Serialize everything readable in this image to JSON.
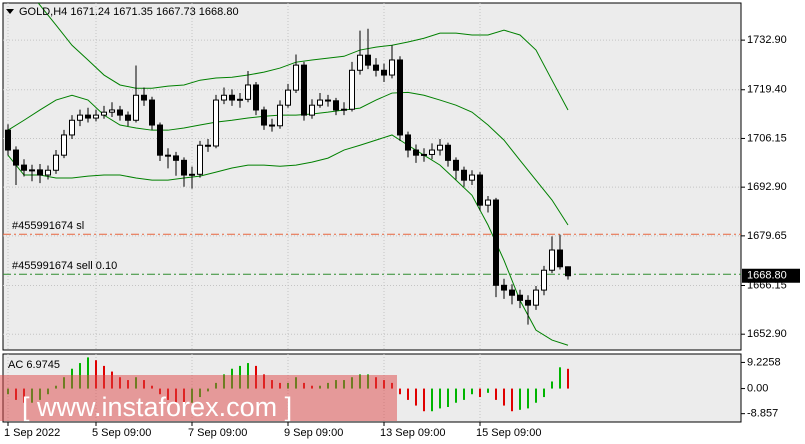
{
  "chart_data": {
    "type": "candlestick",
    "title": "GOLD,H4  1671.24 1671.35 1667.73 1668.80",
    "categories": [
      "1 Sep 2022",
      null,
      null,
      null,
      null,
      null,
      null,
      null,
      null,
      null,
      null,
      "5 Sep 09:00",
      null,
      null,
      null,
      null,
      null,
      null,
      null,
      null,
      null,
      null,
      null,
      "7 Sep 09:00",
      null,
      null,
      null,
      null,
      null,
      null,
      null,
      null,
      null,
      null,
      null,
      "9 Sep 09:00",
      null,
      null,
      null,
      null,
      null,
      null,
      null,
      null,
      null,
      null,
      null,
      "13 Sep 09:00",
      null,
      null,
      null,
      null,
      null,
      null,
      null,
      null,
      null,
      null,
      null,
      "15 Sep 09:00",
      null,
      null,
      null,
      null,
      null,
      null,
      null,
      null,
      null,
      null,
      null
    ],
    "open": [
      1708.4,
      1703.0,
      1698.9,
      1697.5,
      1697.6,
      1696.2,
      1697.5,
      1701.6,
      1707.1,
      1711.1,
      1712.5,
      1711.7,
      1712.5,
      1713.3,
      1713.9,
      1712.5,
      1711.1,
      1717.9,
      1716.6,
      1709.8,
      1701.6,
      1701.4,
      1700.2,
      1696.2,
      1696.4,
      1704.3,
      1704.1,
      1716.6,
      1717.9,
      1716.6,
      1716.8,
      1720.7,
      1713.9,
      1709.8,
      1709.6,
      1715.2,
      1719.3,
      1726.1,
      1712.5,
      1715.2,
      1716.6,
      1716.4,
      1713.9,
      1714.1,
      1724.7,
      1728.8,
      1726.1,
      1724.7,
      1723.4,
      1727.5,
      1707.1,
      1703.0,
      1701.6,
      1701.8,
      1703.0,
      1704.3,
      1700.2,
      1697.5,
      1694.8,
      1696.2,
      1688.0,
      1689.4,
      1666.2,
      1664.9,
      1663.5,
      1662.1,
      1660.8,
      1664.9,
      1670.3,
      1675.8,
      1671.24
    ],
    "high": [
      1710.0,
      1704.0,
      1700.5,
      1699.0,
      1699.2,
      1698.8,
      1703.0,
      1708.5,
      1712.5,
      1714.0,
      1714.5,
      1714.0,
      1715.0,
      1716.0,
      1715.0,
      1713.5,
      1726.0,
      1720.0,
      1717.5,
      1710.5,
      1703.5,
      1702.5,
      1701.0,
      1698.5,
      1705.5,
      1706.0,
      1718.0,
      1720.0,
      1719.5,
      1718.5,
      1724.5,
      1721.5,
      1714.8,
      1711.5,
      1716.5,
      1721.0,
      1729.0,
      1727.0,
      1716.8,
      1718.5,
      1718.0,
      1717.2,
      1716.0,
      1727.0,
      1735.5,
      1736.0,
      1728.0,
      1726.5,
      1731.5,
      1728.5,
      1708.0,
      1704.5,
      1703.5,
      1704.8,
      1706.0,
      1705.0,
      1701.0,
      1698.5,
      1697.5,
      1697.0,
      1690.5,
      1690.0,
      1668.0,
      1666.5,
      1665.0,
      1663.5,
      1666.0,
      1671.5,
      1679.5,
      1680.0,
      1671.35
    ],
    "low": [
      1701.5,
      1693.5,
      1695.8,
      1694.5,
      1694.0,
      1695.0,
      1696.5,
      1700.8,
      1706.0,
      1709.5,
      1710.5,
      1710.8,
      1711.5,
      1712.0,
      1711.0,
      1709.5,
      1710.5,
      1715.0,
      1708.5,
      1700.0,
      1698.0,
      1696.0,
      1693.0,
      1692.5,
      1695.5,
      1702.5,
      1703.5,
      1715.5,
      1715.0,
      1714.5,
      1716.0,
      1712.5,
      1708.5,
      1708.0,
      1708.8,
      1714.5,
      1718.5,
      1711.0,
      1711.5,
      1714.5,
      1714.8,
      1712.5,
      1712.5,
      1713.5,
      1723.5,
      1725.0,
      1723.0,
      1721.5,
      1722.5,
      1705.5,
      1701.0,
      1699.5,
      1699.8,
      1700.5,
      1701.5,
      1698.5,
      1695.0,
      1693.0,
      1693.5,
      1686.5,
      1686.0,
      1663.0,
      1662.5,
      1661.0,
      1660.0,
      1655.5,
      1659.5,
      1663.5,
      1669.5,
      1670.5,
      1667.73
    ],
    "close": [
      1703.0,
      1698.9,
      1697.5,
      1697.6,
      1696.2,
      1697.5,
      1701.6,
      1707.1,
      1711.1,
      1712.5,
      1711.7,
      1712.5,
      1713.3,
      1713.9,
      1712.5,
      1711.1,
      1717.9,
      1716.6,
      1709.8,
      1701.6,
      1701.4,
      1700.2,
      1696.2,
      1696.4,
      1704.3,
      1704.1,
      1716.6,
      1717.9,
      1716.6,
      1716.8,
      1720.7,
      1713.9,
      1709.8,
      1709.6,
      1715.2,
      1719.3,
      1726.1,
      1712.5,
      1715.2,
      1716.6,
      1716.4,
      1713.9,
      1714.1,
      1724.7,
      1728.8,
      1726.1,
      1724.7,
      1723.4,
      1727.5,
      1707.1,
      1703.0,
      1701.6,
      1701.8,
      1703.0,
      1704.3,
      1700.2,
      1697.5,
      1694.8,
      1696.2,
      1688.0,
      1689.4,
      1666.2,
      1664.9,
      1663.5,
      1662.1,
      1660.8,
      1664.9,
      1670.3,
      1675.8,
      1671.24,
      1668.8
    ],
    "bull_color": "#ffffff",
    "bear_color": "#000000",
    "ylim": [
      1648.6,
      1743.0
    ],
    "yticks": [
      {
        "value": 1732.9,
        "label": "1732.90"
      },
      {
        "value": 1719.4,
        "label": "1719.40"
      },
      {
        "value": 1706.15,
        "label": "1706.15"
      },
      {
        "value": 1692.9,
        "label": "1692.90"
      },
      {
        "value": 1679.65,
        "label": "1679.65"
      },
      {
        "value": 1666.15,
        "label": "1666.15"
      },
      {
        "value": 1652.9,
        "label": "1652.90"
      }
    ],
    "grid": true,
    "bands": {
      "color": "#008000",
      "x": [
        0,
        2,
        4,
        6,
        8,
        10,
        12,
        14,
        16,
        18,
        20,
        22,
        24,
        26,
        28,
        30,
        32,
        34,
        36,
        38,
        40,
        42,
        44,
        46,
        48,
        50,
        52,
        54,
        56,
        58,
        60,
        62,
        64,
        66,
        68,
        70
      ],
      "upper": [
        1754.7,
        1747.9,
        1742.4,
        1737.0,
        1731.5,
        1727.5,
        1723.4,
        1720.7,
        1719.8,
        1719.8,
        1720.4,
        1720.7,
        1722.0,
        1722.6,
        1722.8,
        1723.4,
        1724.2,
        1725.3,
        1726.9,
        1727.5,
        1728.0,
        1728.5,
        1730.2,
        1731.0,
        1731.5,
        1732.4,
        1733.4,
        1734.8,
        1734.8,
        1734.3,
        1734.3,
        1735.6,
        1734.3,
        1730.2,
        1722.0,
        1713.9
      ],
      "middle": [
        1708.4,
        1711.1,
        1713.9,
        1716.6,
        1717.9,
        1716.6,
        1712.5,
        1709.8,
        1709.0,
        1708.4,
        1708.4,
        1709.0,
        1709.8,
        1710.6,
        1711.1,
        1711.7,
        1712.2,
        1712.5,
        1712.5,
        1712.8,
        1713.3,
        1713.9,
        1714.4,
        1716.6,
        1718.5,
        1718.7,
        1717.9,
        1716.6,
        1715.2,
        1713.3,
        1709.8,
        1705.7,
        1700.2,
        1694.8,
        1689.4,
        1682.6
      ],
      "lower": [
        1701.6,
        1696.2,
        1696.2,
        1695.4,
        1695.4,
        1695.9,
        1696.2,
        1696.2,
        1695.4,
        1694.8,
        1694.8,
        1695.4,
        1695.9,
        1697.0,
        1698.1,
        1698.9,
        1698.9,
        1698.6,
        1698.9,
        1699.7,
        1700.8,
        1703.0,
        1704.3,
        1705.7,
        1707.1,
        1704.3,
        1701.6,
        1698.9,
        1694.8,
        1690.7,
        1682.6,
        1673.0,
        1662.1,
        1654.0,
        1651.3,
        1649.9
      ]
    },
    "levels": [
      {
        "label": "#455991674 sl",
        "value": 1680.1,
        "color": "#e8643c"
      },
      {
        "label": "#455991674 sell 0.10",
        "value": 1669.2,
        "color": "#2e8b2e"
      }
    ],
    "last_price": {
      "value": 1668.8,
      "label": "1668.80"
    },
    "indicator": {
      "type": "bar",
      "title": "AC 6.9745",
      "values": [
        -2,
        -4,
        -5,
        -5,
        -4,
        -2,
        1,
        4,
        7,
        9,
        11,
        10,
        8,
        6,
        4,
        3,
        4,
        3,
        1,
        -2,
        -4,
        -5,
        -6,
        -5,
        -3,
        -1,
        2,
        5,
        7,
        8,
        9,
        8,
        5,
        3,
        2,
        2,
        4,
        2,
        1,
        1,
        2,
        3,
        3,
        4,
        5,
        5,
        4,
        3,
        2,
        -2,
        -4,
        -6,
        -8,
        -8,
        -7,
        -6.5,
        -5,
        -4,
        -2,
        -3,
        -1.5,
        -4,
        -6,
        -8,
        -7.5,
        -7,
        -5,
        -3,
        2.5,
        7.5,
        6.9745
      ],
      "up_color": "#00b400",
      "down_color": "#e00000",
      "ylim": [
        -11.8,
        12.2
      ],
      "yticks": [
        9.2258,
        {
          "value": 0,
          "label": "0.00"
        },
        -8.857
      ]
    }
  },
  "watermark": "[ www.instaforex.com ]"
}
